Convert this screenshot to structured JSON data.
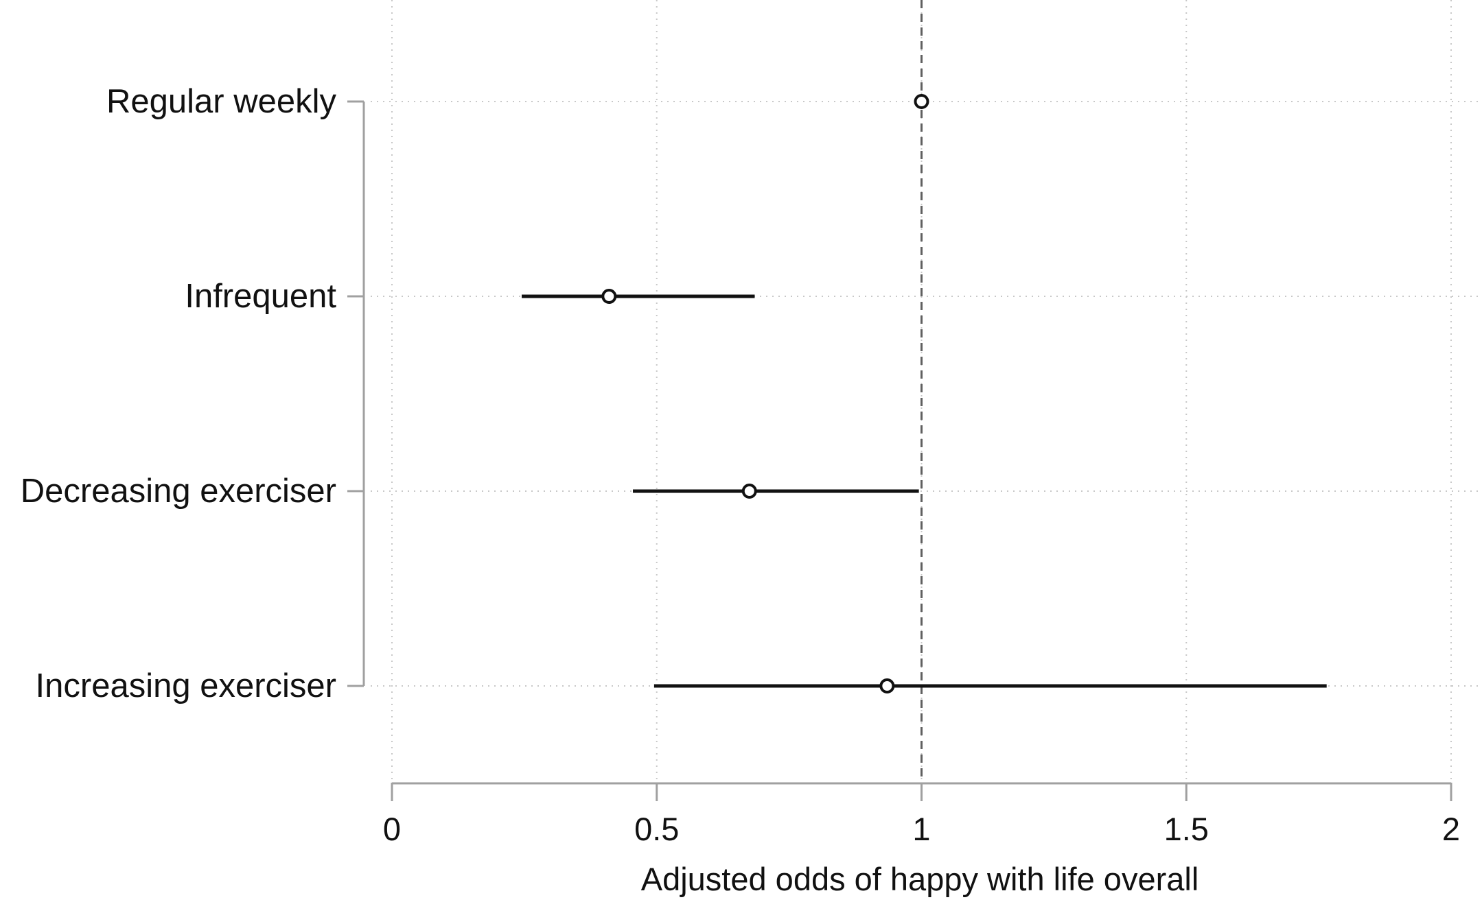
{
  "chart_data": {
    "type": "scatter",
    "subtype": "forest-plot",
    "title": "",
    "xlabel": "Adjusted odds of happy with life overall",
    "ylabel": "",
    "xlim": [
      0,
      2
    ],
    "x_ticks": [
      0,
      0.5,
      1,
      1.5,
      2
    ],
    "x_tick_labels": [
      "0",
      "0.5",
      "1",
      "1.5",
      "2"
    ],
    "reference_line": 1,
    "grid": true,
    "categories": [
      "Regular weekly",
      "Infrequent",
      "Decreasing exerciser",
      "Increasing exerciser"
    ],
    "estimates": [
      1.0,
      0.41,
      0.675,
      0.935
    ],
    "ci_lower": [
      null,
      0.245,
      0.455,
      0.495
    ],
    "ci_upper": [
      null,
      0.685,
      0.995,
      1.765
    ]
  },
  "colors": {
    "marker": "#111111",
    "ci_line": "#111111",
    "axis": "#a0a0a0",
    "grid": "#c8c8c8",
    "reference_line": "#606060"
  }
}
